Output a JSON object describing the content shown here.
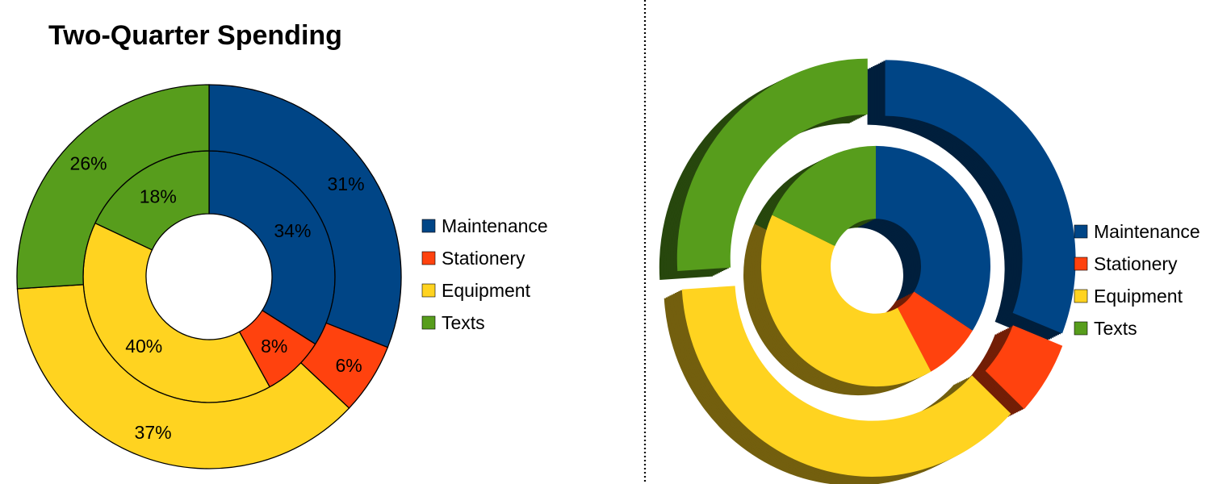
{
  "chart_data": [
    {
      "type": "pie",
      "variant": "double-donut-2d",
      "title": "Two-Quarter Spending",
      "categories": [
        "Maintenance",
        "Stationery",
        "Equipment",
        "Texts"
      ],
      "colors": [
        "#004586",
        "#ff420e",
        "#ffd320",
        "#579d1c"
      ],
      "series": [
        {
          "ring": "inner",
          "values": [
            34,
            8,
            40,
            18
          ]
        },
        {
          "ring": "outer",
          "values": [
            31,
            6,
            37,
            26
          ]
        }
      ],
      "labels": {
        "inner": [
          "34%",
          "8%",
          "40%",
          "18%"
        ],
        "outer": [
          "31%",
          "6%",
          "37%",
          "26%"
        ]
      },
      "legend": {
        "position": "right",
        "entries": [
          "Maintenance",
          "Stationery",
          "Equipment",
          "Texts"
        ]
      }
    },
    {
      "type": "pie",
      "variant": "double-donut-3d-exploded",
      "title": "",
      "categories": [
        "Maintenance",
        "Stationery",
        "Equipment",
        "Texts"
      ],
      "colors": [
        "#004586",
        "#ff420e",
        "#ffd320",
        "#579d1c"
      ],
      "series": [
        {
          "ring": "inner",
          "values": [
            34,
            8,
            40,
            18
          ]
        },
        {
          "ring": "outer",
          "values": [
            31,
            6,
            37,
            26
          ]
        }
      ],
      "legend": {
        "position": "right",
        "entries": [
          "Maintenance",
          "Stationery",
          "Equipment",
          "Texts"
        ]
      }
    }
  ],
  "separator": "dotted-vertical"
}
